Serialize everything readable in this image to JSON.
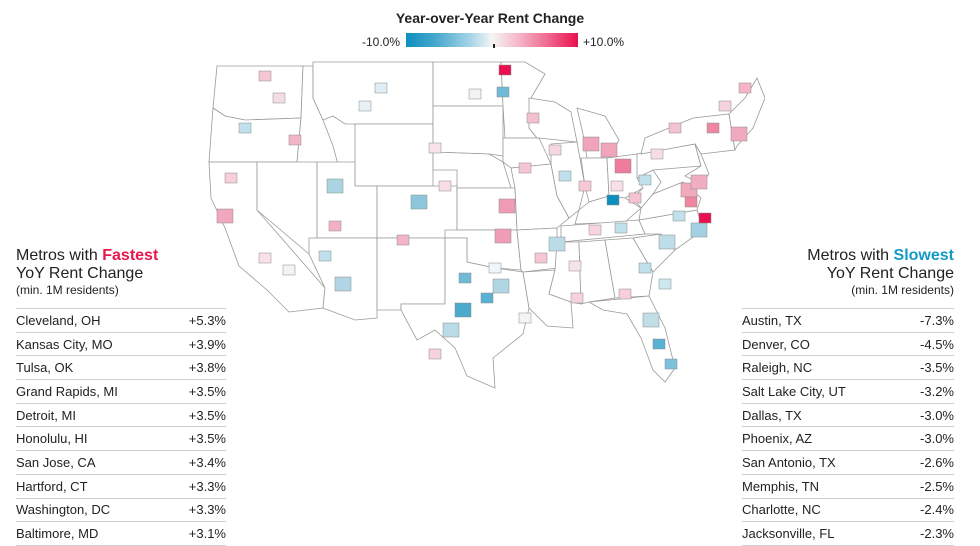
{
  "legend": {
    "title": "Year-over-Year Rent Change",
    "min_label": "-10.0%",
    "max_label": "+10.0%",
    "color_low": "#0e8fbe",
    "color_mid": "#f5f5f5",
    "color_high": "#e8104e"
  },
  "fastest": {
    "title_prefix": "Metros with ",
    "title_accent": "Fastest",
    "title_line2": "YoY Rent Change",
    "subtitle": "(min. 1M residents)",
    "accent_color": "#e8174d",
    "rows": [
      {
        "metro": "Cleveland, OH",
        "value": "+5.3%"
      },
      {
        "metro": "Kansas City, MO",
        "value": "+3.9%"
      },
      {
        "metro": "Tulsa, OK",
        "value": "+3.8%"
      },
      {
        "metro": "Grand Rapids, MI",
        "value": "+3.5%"
      },
      {
        "metro": "Detroit, MI",
        "value": "+3.5%"
      },
      {
        "metro": "Honolulu, HI",
        "value": "+3.5%"
      },
      {
        "metro": "San Jose, CA",
        "value": "+3.4%"
      },
      {
        "metro": "Hartford, CT",
        "value": "+3.3%"
      },
      {
        "metro": "Washington, DC",
        "value": "+3.3%"
      },
      {
        "metro": "Baltimore, MD",
        "value": "+3.1%"
      }
    ]
  },
  "slowest": {
    "title_prefix": "Metros with ",
    "title_accent": "Slowest",
    "title_line2": "YoY Rent Change",
    "subtitle": "(min. 1M residents)",
    "accent_color": "#1399c6",
    "rows": [
      {
        "metro": "Austin, TX",
        "value": "-7.3%"
      },
      {
        "metro": "Denver, CO",
        "value": "-4.5%"
      },
      {
        "metro": "Raleigh, NC",
        "value": "-3.5%"
      },
      {
        "metro": "Salt Lake City, UT",
        "value": "-3.2%"
      },
      {
        "metro": "Dallas, TX",
        "value": "-3.0%"
      },
      {
        "metro": "Phoenix, AZ",
        "value": "-3.0%"
      },
      {
        "metro": "San Antonio, TX",
        "value": "-2.6%"
      },
      {
        "metro": "Memphis, TN",
        "value": "-2.5%"
      },
      {
        "metro": "Charlotte, NC",
        "value": "-2.4%"
      },
      {
        "metro": "Jacksonville, FL",
        "value": "-2.3%"
      }
    ]
  },
  "map_metros": [
    {
      "id": "cleveland",
      "change": 5.3
    },
    {
      "id": "kansas-city",
      "change": 3.9
    },
    {
      "id": "tulsa",
      "change": 3.8
    },
    {
      "id": "grand-rapids",
      "change": 3.5
    },
    {
      "id": "detroit",
      "change": 3.5
    },
    {
      "id": "san-jose",
      "change": 3.4
    },
    {
      "id": "hartford",
      "change": 3.3
    },
    {
      "id": "washington",
      "change": 3.3
    },
    {
      "id": "baltimore",
      "change": 3.1
    },
    {
      "id": "austin",
      "change": -7.3
    },
    {
      "id": "denver",
      "change": -4.5
    },
    {
      "id": "raleigh",
      "change": -3.5
    },
    {
      "id": "salt-lake-city",
      "change": -3.2
    },
    {
      "id": "dallas",
      "change": -3.0
    },
    {
      "id": "phoenix",
      "change": -3.0
    },
    {
      "id": "san-antonio",
      "change": -2.6
    },
    {
      "id": "memphis",
      "change": -2.5
    },
    {
      "id": "charlotte",
      "change": -2.4
    },
    {
      "id": "jacksonville",
      "change": -2.3
    }
  ]
}
